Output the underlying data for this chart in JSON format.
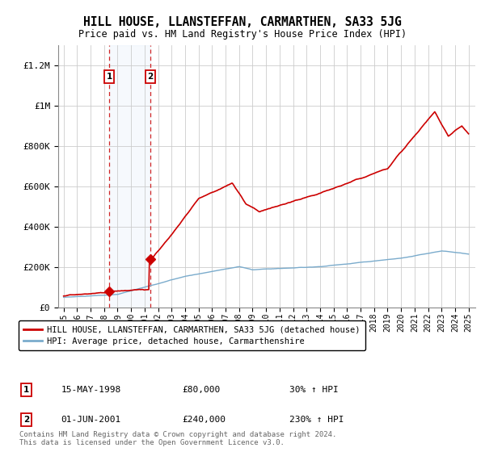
{
  "title": "HILL HOUSE, LLANSTEFFAN, CARMARTHEN, SA33 5JG",
  "subtitle": "Price paid vs. HM Land Registry's House Price Index (HPI)",
  "legend_line1": "HILL HOUSE, LLANSTEFFAN, CARMARTHEN, SA33 5JG (detached house)",
  "legend_line2": "HPI: Average price, detached house, Carmarthenshire",
  "transaction1_date": "15-MAY-1998",
  "transaction1_price": 80000,
  "transaction1_label": "£80,000",
  "transaction1_hpi": "30% ↑ HPI",
  "transaction2_date": "01-JUN-2001",
  "transaction2_price": 240000,
  "transaction2_label": "£240,000",
  "transaction2_hpi": "230% ↑ HPI",
  "footer": "Contains HM Land Registry data © Crown copyright and database right 2024.\nThis data is licensed under the Open Government Licence v3.0.",
  "house_color": "#cc0000",
  "hpi_color": "#7aabcc",
  "background_color": "#ffffff",
  "grid_color": "#cccccc",
  "ylim": [
    0,
    1300000
  ],
  "yticks": [
    0,
    200000,
    400000,
    600000,
    800000,
    1000000,
    1200000
  ],
  "ytick_labels": [
    "£0",
    "£200K",
    "£400K",
    "£600K",
    "£800K",
    "£1M",
    "£1.2M"
  ],
  "t1_x": 1998.375,
  "t2_x": 2001.417,
  "t1_y": 80000,
  "t2_y": 240000,
  "xlim_left": 1994.6,
  "xlim_right": 2025.5,
  "hatch_start": 2024.5
}
